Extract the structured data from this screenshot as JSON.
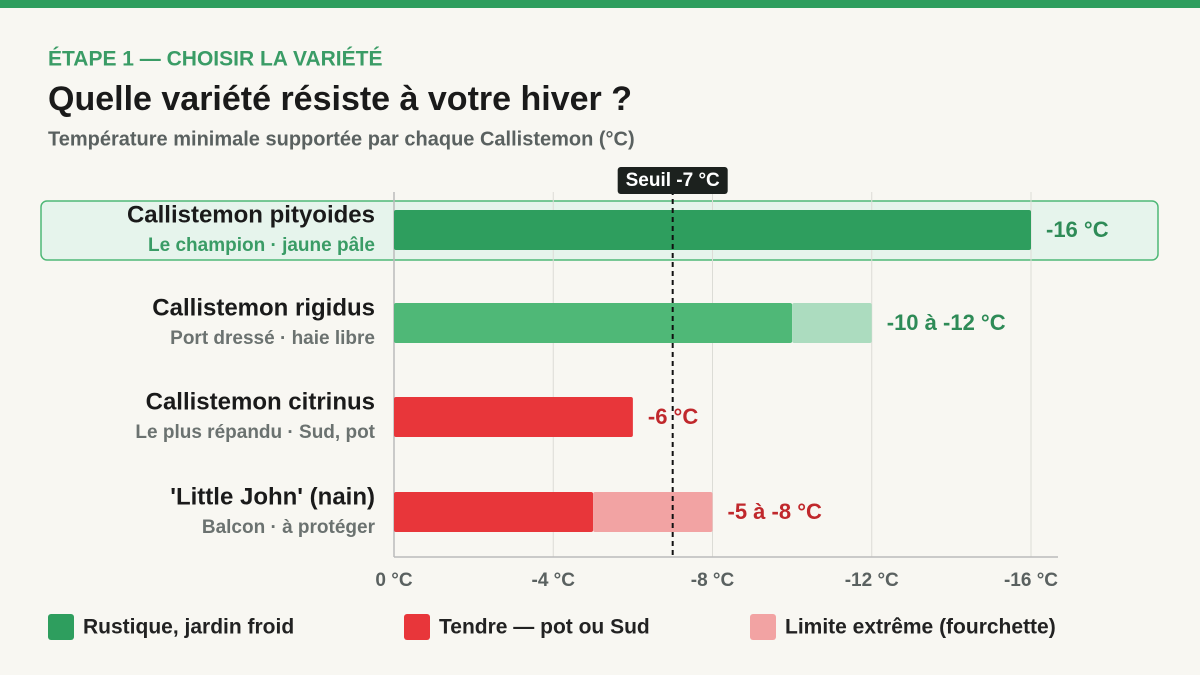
{
  "chart_data": {
    "type": "range-bar",
    "eyebrow": "ÉTAPE 1 — CHOISIR LA VARIÉTÉ",
    "title": "Quelle variété résiste à votre hiver ?",
    "subtitle": "Température minimale supportée par chaque Callistemon (°C)",
    "categories": [
      "Callistemon pityoides",
      "Callistemon rigidus",
      "Callistemon citrinus",
      "'Little John' (nain)"
    ],
    "notes": [
      "Le champion · jaune pâle",
      "Port dressé · haie libre",
      "Le plus répandu · Sud, pot",
      "Balcon · à protéger"
    ],
    "values": [
      -16,
      -10,
      -6,
      -5
    ],
    "range_end": [
      null,
      -12,
      null,
      -8
    ],
    "value_labels": [
      "-16 °C",
      "-10 à -12 °C",
      "-6 °C",
      "-5 à -8 °C"
    ],
    "colors": [
      "#2e9e5e",
      "#4fb877",
      "#e8363a",
      "#e8363a"
    ],
    "range_colors": [
      null,
      "#acdcbf",
      null,
      "#f2a3a3"
    ],
    "label_colors": [
      "#2e8b57",
      "#2e8b57",
      "#c0282c",
      "#c0282c"
    ],
    "highlight": 0,
    "threshold": {
      "value": -7,
      "label": "Seuil -7 °C"
    },
    "xlim": [
      0,
      -16
    ],
    "xticks": [
      {
        "value": 0,
        "label": "0 °C"
      },
      {
        "value": -4,
        "label": "-4 °C"
      },
      {
        "value": -8,
        "label": "-8 °C"
      },
      {
        "value": -12,
        "label": "-12 °C"
      },
      {
        "value": -16,
        "label": "-16 °C"
      }
    ],
    "grid": true,
    "legend": [
      {
        "name": "Rustique, jardin froid",
        "color": "#2e9e5e"
      },
      {
        "name": "Tendre — pot ou Sud",
        "color": "#e8363a"
      },
      {
        "name": "Limite extrême (fourchette)",
        "color": "#f2a3a3"
      }
    ]
  }
}
